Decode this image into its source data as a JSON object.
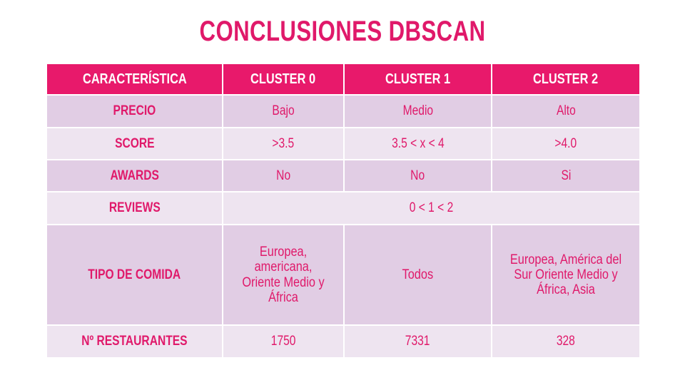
{
  "title": "CONCLUSIONES DBSCAN",
  "table": {
    "headers": [
      "CARACTERÍSTICA",
      "CLUSTER 0",
      "CLUSTER 1",
      "CLUSTER 2"
    ],
    "rows": {
      "precio": {
        "label": "PRECIO",
        "c0": "Bajo",
        "c1": "Medio",
        "c2": "Alto"
      },
      "score": {
        "label": "SCORE",
        "c0": ">3.5",
        "c1": "3.5 < x < 4",
        "c2": ">4.0"
      },
      "awards": {
        "label": "AWARDS",
        "c0": "No",
        "c1": "No",
        "c2": "Si"
      },
      "reviews": {
        "label": "REVIEWS",
        "value": "0 < 1 < 2"
      },
      "tipo": {
        "label": "TIPO DE COMIDA",
        "c0": "Europea, americana, Oriente Medio y África",
        "c1": "Todos",
        "c2": "Europea, América del Sur Oriente Medio y África, Asia"
      },
      "restaurantes": {
        "label": "Nº RESTAURANTES",
        "c0": "1750",
        "c1": "7331",
        "c2": "328"
      }
    }
  },
  "colors": {
    "accent": "#e8196b",
    "text": "#e0196a",
    "row_dark": "#e1cde4",
    "row_light": "#eee4f0"
  }
}
